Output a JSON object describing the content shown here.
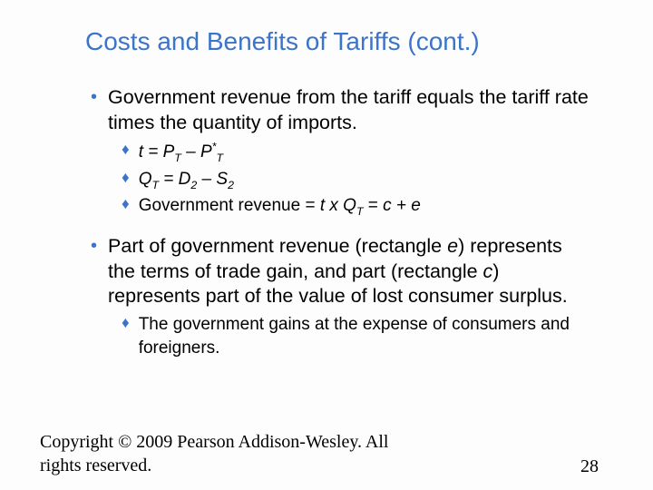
{
  "title": "Costs and Benefits of Tariffs (cont.)",
  "bullets": [
    {
      "level": 1,
      "html": "Government revenue from the tariff equals the tariff rate times the quantity of imports."
    },
    {
      "level": 2,
      "html": "<span class='ital'>t = P<sub>T</sub> – P<sup>*</sup><sub>T</sub></span>"
    },
    {
      "level": 2,
      "html": "<span class='ital'>Q<sub>T</sub> = D<sub>2</sub> – S<sub>2</sub></span>"
    },
    {
      "level": 2,
      "html": "Government revenue = <span class='ital'>t x Q<sub>T</sub></span> = <span class='ital'>c + e</span>"
    },
    {
      "gap": true
    },
    {
      "level": 1,
      "html": "Part of government revenue (rectangle <span class='ital'>e</span>) represents the terms of trade gain, and part (rectangle <span class='ital'>c</span>) represents part of the value of lost consumer surplus."
    },
    {
      "level": 2,
      "html": "The government gains at the expense of consumers and foreigners."
    }
  ],
  "copyright": "Copyright © 2009 Pearson Addison-Wesley. All rights reserved.",
  "page_number": "28",
  "colors": {
    "accent": "#3b74c8",
    "text": "#000000",
    "background": "#fdfdfd"
  }
}
